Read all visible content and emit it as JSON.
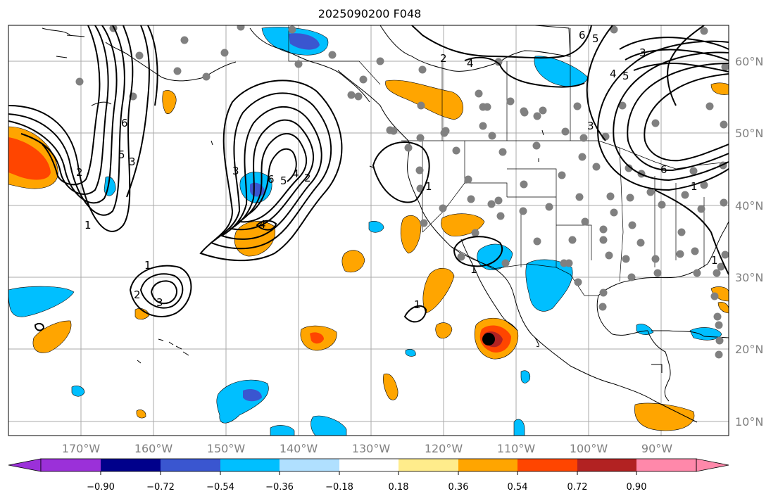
{
  "title": "2025090200 F048",
  "lon_labels": [
    "170°W",
    "160°W",
    "150°W",
    "140°W",
    "130°W",
    "120°W",
    "110°W",
    "100°W",
    "90°W"
  ],
  "lat_labels": [
    "60°N",
    "50°N",
    "40°N",
    "30°N",
    "20°N",
    "10°N"
  ],
  "colorbar": {
    "ticks": [
      "−0.90",
      "−0.72",
      "−0.54",
      "−0.36",
      "−0.18",
      "0.18",
      "0.36",
      "0.54",
      "0.72",
      "0.90"
    ],
    "colors": [
      "#9b30d9",
      "#00008b",
      "#3a56d0",
      "#00bfff",
      "#b0e0ff",
      "#ffffff",
      "#ffec8b",
      "#ffa500",
      "#ff4500",
      "#b22222",
      "#ff88aa"
    ]
  },
  "contour_labels": [
    "1",
    "2",
    "3",
    "4",
    "5",
    "6"
  ]
}
